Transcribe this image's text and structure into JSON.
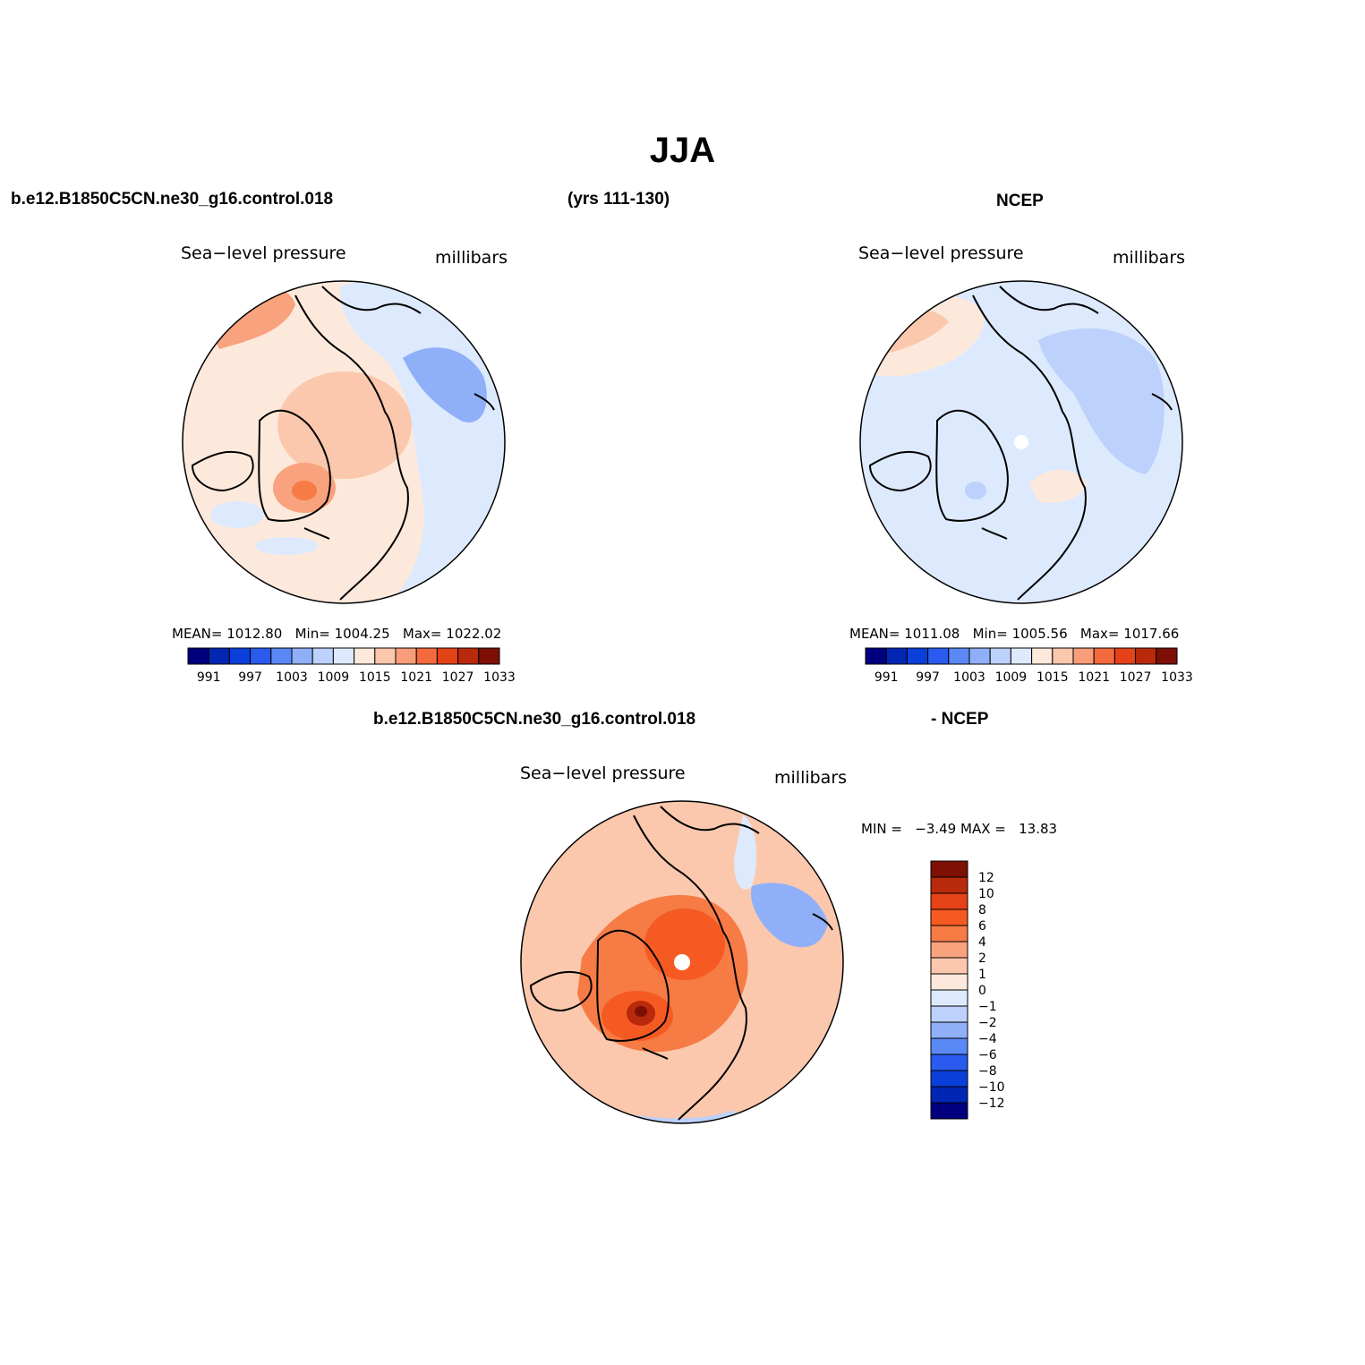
{
  "figure": {
    "title": "JJA",
    "header_left": "b.e12.B1850C5CN.ne30_g16.control.018",
    "header_mid": "(yrs 111-130)",
    "header_right": "NCEP",
    "diff_header_left": "b.e12.B1850C5CN.ne30_g16.control.018",
    "diff_header_right": "- NCEP"
  },
  "panels": {
    "model": {
      "variable": "Sea−level pressure",
      "units": "millibars",
      "stats": {
        "mean_label": "MEAN=",
        "mean": "1012.80",
        "min_label": "Min=",
        "min": "1004.25",
        "max_label": "Max=",
        "max": "1022.02"
      }
    },
    "obs": {
      "variable": "Sea−level pressure",
      "units": "millibars",
      "stats": {
        "mean_label": "MEAN=",
        "mean": "1011.08",
        "min_label": "Min=",
        "min": "1005.56",
        "max_label": "Max=",
        "max": "1017.66"
      }
    },
    "diff": {
      "variable": "Sea−level pressure",
      "units": "millibars",
      "stats": {
        "min_label": "MIN =",
        "min": "−3.49",
        "max_label": "MAX =",
        "max": "13.83"
      }
    }
  },
  "colorbar_abs": {
    "colors": [
      "#00007f",
      "#0026b3",
      "#0a3fd9",
      "#2a5bee",
      "#5a88f5",
      "#8fb0f8",
      "#bcd1fb",
      "#ddeafd",
      "#fde9dc",
      "#fbc7ad",
      "#f79d79",
      "#f46a3c",
      "#e54218",
      "#b82a0b",
      "#7d0f05"
    ],
    "labels": [
      "991",
      "997",
      "1003",
      "1009",
      "1015",
      "1021",
      "1027",
      "1033"
    ]
  },
  "colorbar_diff": {
    "colors": [
      "#7d0f05",
      "#b82a0b",
      "#e54218",
      "#f65a23",
      "#f67b45",
      "#f9a27e",
      "#fbc8ad",
      "#fde9dc",
      "#ddeafd",
      "#bcd1fb",
      "#8fb0f8",
      "#5a88f5",
      "#2a5bee",
      "#0a3fd9",
      "#0026b3",
      "#00007f"
    ],
    "labels": [
      "12",
      "10",
      "8",
      "6",
      "4",
      "2",
      "1",
      "0",
      "−1",
      "−2",
      "−4",
      "−6",
      "−8",
      "−10",
      "−12"
    ]
  }
}
